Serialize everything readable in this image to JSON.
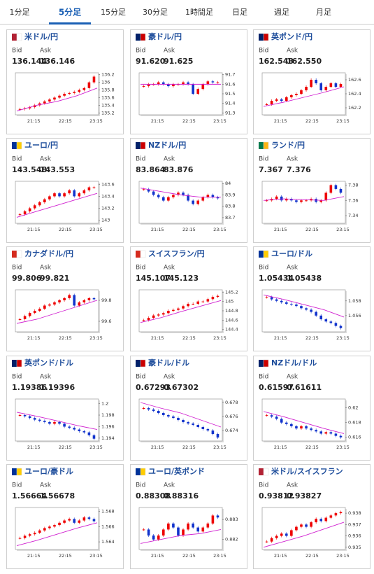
{
  "tabs": [
    "1分足",
    "5分足",
    "15分足",
    "30分足",
    "1時間足",
    "日足",
    "週足",
    "月足"
  ],
  "active_tab": 1,
  "bid_label": "Bid",
  "ask_label": "Ask",
  "panels": [
    {
      "title": "米ドル/円",
      "bid": "136.144",
      "ask": "136.146",
      "ylim": [
        135.15,
        136.25
      ],
      "yticks": [
        136.2,
        136,
        135.8,
        135.6,
        135.4,
        135.2
      ],
      "xticks": [
        "21:15",
        "22:15",
        "23:15"
      ],
      "close": [
        135.3,
        135.32,
        135.35,
        135.4,
        135.45,
        135.5,
        135.55,
        135.6,
        135.65,
        135.7,
        135.72,
        135.75,
        135.8,
        135.85,
        136.0,
        136.15
      ],
      "ma": [
        135.25,
        135.4,
        135.5,
        135.65,
        135.85
      ]
    },
    {
      "title": "豪ドル/円",
      "bid": "91.620",
      "ask": "91.625",
      "ylim": [
        91.28,
        91.72
      ],
      "yticks": [
        91.7,
        91.6,
        91.5,
        91.4,
        91.3
      ],
      "xticks": [
        "21:15",
        "22:15",
        "23:15"
      ],
      "close": [
        91.58,
        91.6,
        91.6,
        91.62,
        91.6,
        91.58,
        91.6,
        91.6,
        91.62,
        91.6,
        91.5,
        91.55,
        91.6,
        91.63,
        91.62,
        91.62
      ],
      "ma": [
        91.6,
        91.6,
        91.6,
        91.6,
        91.6
      ]
    },
    {
      "title": "英ポンド/円",
      "bid": "162.543",
      "ask": "162.550",
      "ylim": [
        162.1,
        162.7
      ],
      "yticks": [
        162.6,
        162.4,
        162.2
      ],
      "xticks": [
        "21:15",
        "22:15",
        "23:15"
      ],
      "close": [
        162.25,
        162.3,
        162.32,
        162.3,
        162.35,
        162.38,
        162.4,
        162.45,
        162.5,
        162.6,
        162.55,
        162.45,
        162.5,
        162.55,
        162.5,
        162.54
      ],
      "ma": [
        162.22,
        162.28,
        162.35,
        162.42,
        162.5
      ]
    },
    {
      "title": "ユーロ/円",
      "bid": "143.548",
      "ask": "143.553",
      "ylim": [
        142.95,
        143.65
      ],
      "yticks": [
        143.6,
        143.4,
        143.2,
        143
      ],
      "xticks": [
        "21:15",
        "22:15",
        "23:15"
      ],
      "close": [
        143.1,
        143.15,
        143.2,
        143.25,
        143.3,
        143.35,
        143.4,
        143.45,
        143.4,
        143.45,
        143.5,
        143.4,
        143.45,
        143.5,
        143.55,
        143.55
      ],
      "ma": [
        143.05,
        143.15,
        143.25,
        143.35,
        143.45
      ]
    },
    {
      "title": "NZドル/円",
      "bid": "83.864",
      "ask": "83.876",
      "ylim": [
        83.65,
        84.02
      ],
      "yticks": [
        84,
        83.9,
        83.8,
        83.7
      ],
      "xticks": [
        "21:15",
        "22:15",
        "23:15"
      ],
      "close": [
        83.95,
        83.93,
        83.9,
        83.88,
        83.85,
        83.88,
        83.9,
        83.92,
        83.9,
        83.85,
        83.82,
        83.85,
        83.88,
        83.9,
        83.88,
        83.87
      ],
      "ma": [
        83.96,
        83.93,
        83.9,
        83.88,
        83.88
      ]
    },
    {
      "title": "ランド/円",
      "bid": "7.367",
      "ask": "7.376",
      "ylim": [
        7.33,
        7.385
      ],
      "yticks": [
        7.38,
        7.36,
        7.34
      ],
      "xticks": [
        "21:15",
        "22:15",
        "23:15"
      ],
      "close": [
        7.36,
        7.362,
        7.365,
        7.36,
        7.362,
        7.36,
        7.358,
        7.36,
        7.36,
        7.362,
        7.358,
        7.36,
        7.37,
        7.38,
        7.375,
        7.37
      ],
      "ma": [
        7.36,
        7.362,
        7.361,
        7.36,
        7.365
      ]
    },
    {
      "title": "カナダドル/円",
      "bid": "99.806",
      "ask": "99.821",
      "ylim": [
        99.5,
        99.9
      ],
      "yticks": [
        99.8,
        99.6
      ],
      "xticks": [
        "21:15",
        "22:15",
        "23:15"
      ],
      "close": [
        99.62,
        99.65,
        99.68,
        99.7,
        99.72,
        99.75,
        99.76,
        99.78,
        99.8,
        99.82,
        99.85,
        99.75,
        99.78,
        99.8,
        99.82,
        99.81
      ],
      "ma": [
        99.58,
        99.62,
        99.68,
        99.74,
        99.8
      ]
    },
    {
      "title": "スイスフラン/円",
      "bid": "145.107",
      "ask": "145.123",
      "ylim": [
        144.35,
        145.25
      ],
      "yticks": [
        145.2,
        145,
        144.8,
        144.6,
        144.4
      ],
      "xticks": [
        "21:15",
        "22:15",
        "23:15"
      ],
      "close": [
        144.6,
        144.65,
        144.7,
        144.72,
        144.75,
        144.8,
        144.82,
        144.85,
        144.9,
        144.95,
        144.95,
        145.0,
        145.0,
        145.05,
        145.1,
        145.12
      ],
      "ma": [
        144.55,
        144.65,
        144.78,
        144.9,
        145.02
      ]
    },
    {
      "title": "ユーロ/ドル",
      "bid": "1.05434",
      "ask": "1.05438",
      "ylim": [
        1.0538,
        1.0595
      ],
      "yticks": [
        1.058,
        1.056
      ],
      "xticks": [
        "21:15",
        "22:15",
        "23:15"
      ],
      "close": [
        1.0585,
        1.0582,
        1.058,
        1.0578,
        1.0576,
        1.0575,
        1.0573,
        1.057,
        1.0568,
        1.0565,
        1.056,
        1.0555,
        1.0552,
        1.055,
        1.0546,
        1.0543
      ],
      "ma": [
        1.0588,
        1.0582,
        1.0575,
        1.0568,
        1.0558
      ]
    },
    {
      "title": "英ポンド/ドル",
      "bid": "1.19386",
      "ask": "1.19396",
      "ylim": [
        1.1935,
        1.2008
      ],
      "yticks": [
        1.2,
        1.198,
        1.196,
        1.194
      ],
      "xticks": [
        "21:15",
        "22:15",
        "23:15"
      ],
      "close": [
        1.198,
        1.1978,
        1.1975,
        1.1972,
        1.197,
        1.1968,
        1.1965,
        1.1968,
        1.1965,
        1.196,
        1.1958,
        1.1955,
        1.1952,
        1.195,
        1.1945,
        1.1939
      ],
      "ma": [
        1.1985,
        1.1978,
        1.197,
        1.1962,
        1.1955
      ]
    },
    {
      "title": "豪ドル/ドル",
      "bid": "0.67293",
      "ask": "0.67302",
      "ylim": [
        0.6725,
        0.6785
      ],
      "yticks": [
        0.678,
        0.676,
        0.674
      ],
      "xticks": [
        "21:15",
        "22:15",
        "23:15"
      ],
      "close": [
        0.6772,
        0.677,
        0.6768,
        0.6765,
        0.6762,
        0.676,
        0.6758,
        0.6755,
        0.6752,
        0.675,
        0.6748,
        0.6745,
        0.6742,
        0.674,
        0.6735,
        0.673
      ],
      "ma": [
        0.678,
        0.6772,
        0.6765,
        0.6755,
        0.6745
      ]
    },
    {
      "title": "NZドル/ドル",
      "bid": "0.61597",
      "ask": "0.61611",
      "ylim": [
        0.6155,
        0.6212
      ],
      "yticks": [
        0.62,
        0.618,
        0.616
      ],
      "xticks": [
        "21:15",
        "22:15",
        "23:15"
      ],
      "close": [
        0.619,
        0.6188,
        0.6185,
        0.618,
        0.6178,
        0.6175,
        0.6172,
        0.6175,
        0.6172,
        0.617,
        0.6168,
        0.6165,
        0.6167,
        0.6165,
        0.6162,
        0.616
      ],
      "ma": [
        0.6195,
        0.6188,
        0.618,
        0.6172,
        0.6165
      ]
    },
    {
      "title": "ユーロ/豪ドル",
      "bid": "1.56664",
      "ask": "1.56678",
      "ylim": [
        1.563,
        1.5685
      ],
      "yticks": [
        1.568,
        1.566,
        1.564
      ],
      "xticks": [
        "21:15",
        "22:15",
        "23:15"
      ],
      "close": [
        1.5645,
        1.5648,
        1.565,
        1.5652,
        1.5655,
        1.5658,
        1.566,
        1.5662,
        1.5665,
        1.5668,
        1.567,
        1.5665,
        1.5668,
        1.5672,
        1.567,
        1.5667
      ],
      "ma": [
        1.5635,
        1.5642,
        1.565,
        1.5658,
        1.5665
      ]
    },
    {
      "title": "ユーロ/英ポンド",
      "bid": "0.88308",
      "ask": "0.88316",
      "ylim": [
        0.8815,
        0.8836
      ],
      "yticks": [
        0.883,
        0.882
      ],
      "xticks": [
        "21:15",
        "22:15",
        "23:15"
      ],
      "close": [
        0.8825,
        0.8822,
        0.882,
        0.8822,
        0.8825,
        0.8828,
        0.8826,
        0.8822,
        0.8825,
        0.8828,
        0.8826,
        0.8824,
        0.8826,
        0.8828,
        0.8832,
        0.8831
      ],
      "ma": [
        0.8818,
        0.882,
        0.8822,
        0.8823,
        0.8825
      ]
    },
    {
      "title": "米ドル/スイスフラン",
      "bid": "0.93812",
      "ask": "0.93827",
      "ylim": [
        0.9348,
        0.9385
      ],
      "yticks": [
        0.938,
        0.937,
        0.936,
        0.935
      ],
      "xticks": [
        "21:15",
        "22:15",
        "23:15"
      ],
      "close": [
        0.9355,
        0.9358,
        0.936,
        0.9362,
        0.936,
        0.9365,
        0.9368,
        0.937,
        0.9368,
        0.9372,
        0.9375,
        0.9373,
        0.9376,
        0.9378,
        0.938,
        0.9381
      ],
      "ma": [
        0.935,
        0.9355,
        0.936,
        0.9366,
        0.9372
      ]
    }
  ]
}
